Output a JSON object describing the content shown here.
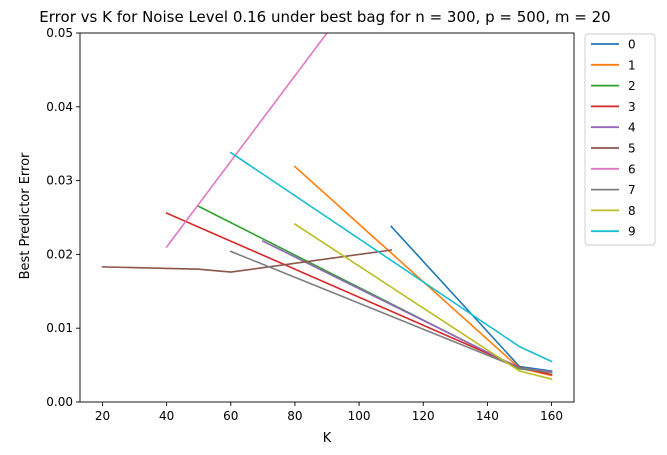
{
  "chart_data": {
    "type": "line",
    "title": "Error vs K for Noise Level 0.16 under best bag for n = 300, p = 500, m = 20",
    "xlabel": "K",
    "ylabel": "Best Predictor Error",
    "xlim": [
      13,
      167
    ],
    "ylim": [
      0,
      0.05
    ],
    "xticks": [
      20,
      40,
      60,
      80,
      100,
      120,
      140,
      160
    ],
    "yticks": [
      0.0,
      0.01,
      0.02,
      0.03,
      0.04,
      0.05
    ],
    "xtick_labels": [
      "20",
      "40",
      "60",
      "80",
      "100",
      "120",
      "140",
      "160"
    ],
    "ytick_labels": [
      "0.00",
      "0.01",
      "0.02",
      "0.03",
      "0.04",
      "0.05"
    ],
    "grid": false,
    "legend_position": "outside-top-right",
    "series": [
      {
        "name": "0",
        "color": "#1f77b4",
        "x": [
          110,
          150,
          160
        ],
        "y": [
          0.0238,
          0.0048,
          0.0042
        ]
      },
      {
        "name": "1",
        "color": "#ff7f0e",
        "x": [
          80,
          150,
          160
        ],
        "y": [
          0.0319,
          0.0046,
          0.0036
        ]
      },
      {
        "name": "2",
        "color": "#2ca02c",
        "x": [
          50,
          150,
          160
        ],
        "y": [
          0.0265,
          0.0045,
          0.004
        ]
      },
      {
        "name": "3",
        "color": "#d62728",
        "x": [
          40,
          150,
          160
        ],
        "y": [
          0.0256,
          0.0047,
          0.0037
        ]
      },
      {
        "name": "4",
        "color": "#9467bd",
        "x": [
          70,
          150,
          160
        ],
        "y": [
          0.0218,
          0.0046,
          0.0041
        ]
      },
      {
        "name": "5",
        "color": "#8c564b",
        "x": [
          20,
          50,
          60,
          110
        ],
        "y": [
          0.0183,
          0.018,
          0.0176,
          0.0206
        ]
      },
      {
        "name": "6",
        "color": "#e377c2",
        "x": [
          40,
          90
        ],
        "y": [
          0.021,
          0.05
        ]
      },
      {
        "name": "7",
        "color": "#7f7f7f",
        "x": [
          60,
          150,
          160
        ],
        "y": [
          0.0204,
          0.0046,
          0.004
        ]
      },
      {
        "name": "8",
        "color": "#bcbd22",
        "x": [
          80,
          150,
          160
        ],
        "y": [
          0.0241,
          0.0042,
          0.0031
        ]
      },
      {
        "name": "9",
        "color": "#17becf",
        "x": [
          60,
          150,
          160
        ],
        "y": [
          0.0338,
          0.0075,
          0.0055
        ]
      }
    ]
  }
}
